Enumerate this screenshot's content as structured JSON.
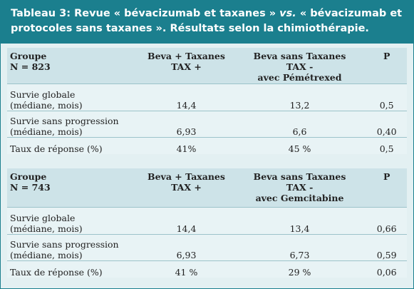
{
  "header": {
    "title_parts": [
      "Tableau 3: Revue « bévacizumab et taxanes » ",
      "vs.",
      " « bévacizumab et protocoles sans taxanes ». Résultats selon la chimiothérapie."
    ]
  },
  "sections": [
    {
      "header": [
        "Groupe\nN = 823",
        "Beva + Taxanes\nTAX +",
        "Beva sans Taxanes\nTAX -\navec Pémétrexed",
        "P"
      ],
      "rows": [
        [
          "Survie globale\n(médiane, mois)",
          "14,4",
          "13,2",
          "0,5"
        ],
        [
          "Survie sans progression\n(médiane, mois)",
          "6,93",
          "6,6",
          "0,40"
        ],
        [
          "Taux de réponse (%)",
          "41%",
          "45 %",
          "0,5"
        ]
      ]
    },
    {
      "header": [
        "Groupe\nN = 743",
        "Beva + Taxanes\nTAX +",
        "Beva sans Taxanes\nTAX -\navec Gemcitabine",
        "P"
      ],
      "rows": [
        [
          "Survie globale\n(médiane, mois)",
          "14,4",
          "13,4",
          "0,66"
        ],
        [
          "Survie sans progression\n(médiane, mois)",
          "6,93",
          "6,73",
          "0,59"
        ],
        [
          "Taux de réponse (%)",
          "41 %",
          "29 %",
          "0,06"
        ]
      ]
    }
  ]
}
